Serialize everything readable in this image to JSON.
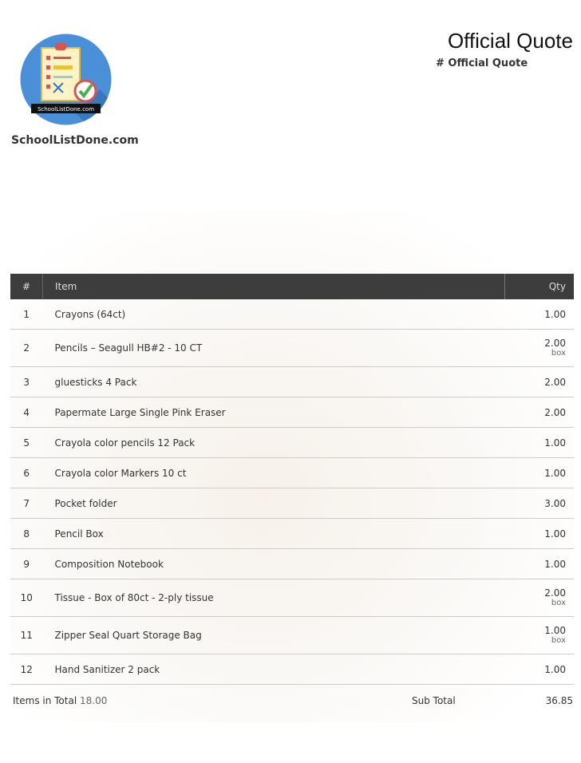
{
  "header": {
    "brand_name": "SchoolListDone.com",
    "logo_text": "SchoolListDone.com",
    "title": "Official Quote",
    "subtitle": "# Official Quote"
  },
  "table": {
    "columns": [
      "#",
      "Item",
      "Qty"
    ],
    "rows": [
      {
        "num": "1",
        "item": "Crayons (64ct)",
        "qty": "1.00",
        "unit": ""
      },
      {
        "num": "2",
        "item": "Pencils – Seagull HB#2 - 10 CT",
        "qty": "2.00",
        "unit": "box"
      },
      {
        "num": "3",
        "item": "gluesticks 4 Pack",
        "qty": "2.00",
        "unit": ""
      },
      {
        "num": "4",
        "item": "Papermate Large Single Pink Eraser",
        "qty": "2.00",
        "unit": ""
      },
      {
        "num": "5",
        "item": "Crayola color pencils 12 Pack",
        "qty": "1.00",
        "unit": ""
      },
      {
        "num": "6",
        "item": "Crayola color Markers 10 ct",
        "qty": "1.00",
        "unit": ""
      },
      {
        "num": "7",
        "item": "Pocket folder",
        "qty": "3.00",
        "unit": ""
      },
      {
        "num": "8",
        "item": "Pencil Box",
        "qty": "1.00",
        "unit": ""
      },
      {
        "num": "9",
        "item": "Composition Notebook",
        "qty": "1.00",
        "unit": ""
      },
      {
        "num": "10",
        "item": "Tissue - Box of 80ct - 2-ply tissue",
        "qty": "2.00",
        "unit": "box"
      },
      {
        "num": "11",
        "item": "Zipper Seal Quart Storage Bag",
        "qty": "1.00",
        "unit": "box"
      },
      {
        "num": "12",
        "item": "Hand Sanitizer 2 pack",
        "qty": "1.00",
        "unit": ""
      }
    ]
  },
  "footer": {
    "items_total_label": "Items in Total",
    "items_total_value": "18.00",
    "subtotal_label": "Sub Total",
    "subtotal_value": "36.85"
  },
  "colors": {
    "header_bg": "#3d3d3d",
    "logo_blue": "#4a90d9"
  }
}
